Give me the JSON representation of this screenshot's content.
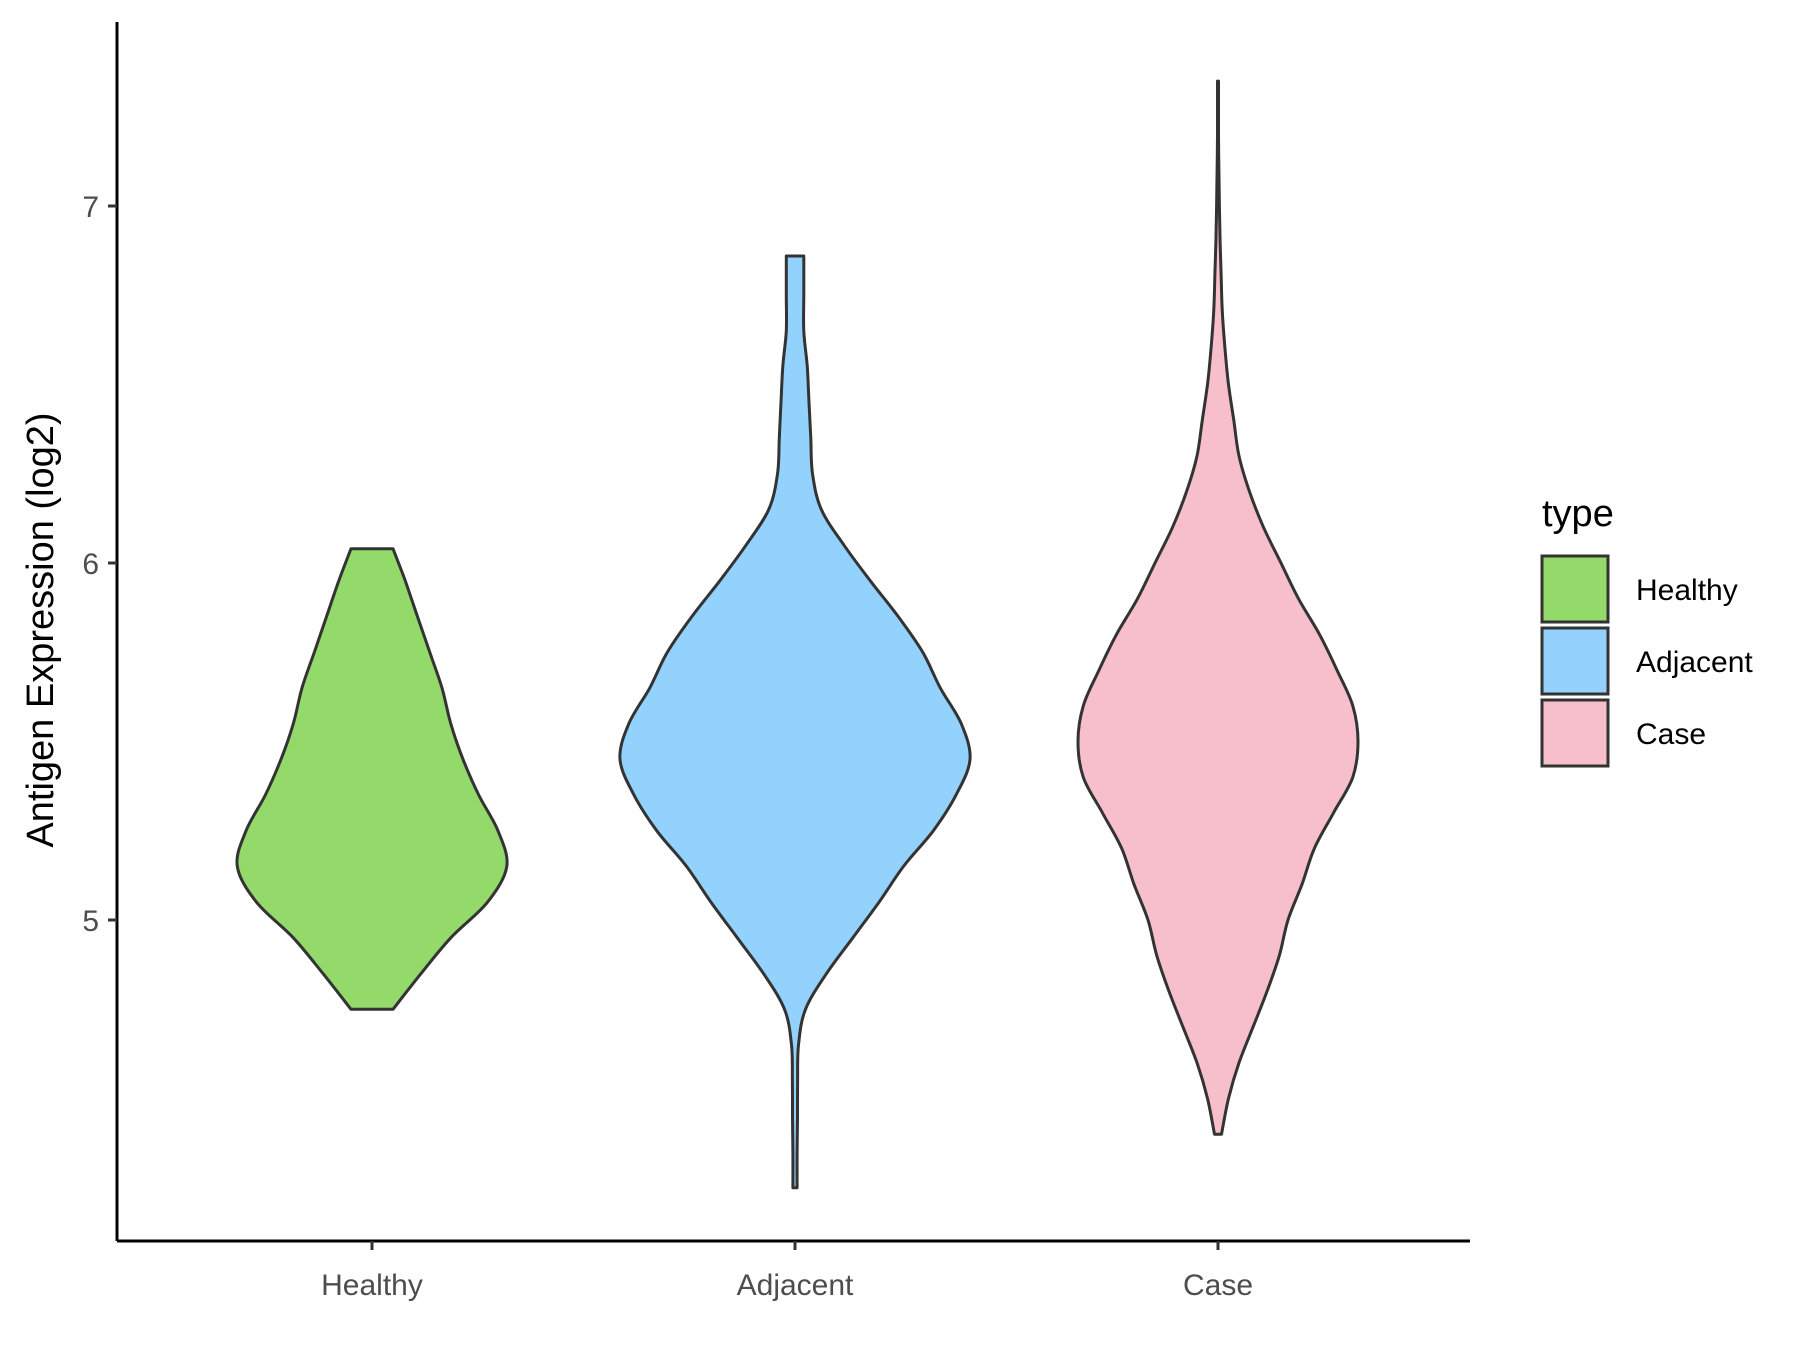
{
  "chart_data": {
    "type": "violin",
    "title": "",
    "xlabel": "",
    "ylabel": "Antigen Expression (log2)",
    "categories": [
      "Healthy",
      "Adjacent",
      "Case"
    ],
    "yticks": [
      "5",
      "6",
      "7"
    ],
    "ylim": [
      4.1,
      7.5
    ],
    "grid": false,
    "legend": {
      "title": "type",
      "placement": "right",
      "entries": [
        "Healthy",
        "Adjacent",
        "Case"
      ]
    },
    "colors": {
      "Healthy": "#93DA6B",
      "Adjacent": "#93D2FC",
      "Case": "#F7BFCB",
      "outline": "#333333"
    },
    "series": [
      {
        "category": "Healthy",
        "min": 4.75,
        "max": 6.04,
        "density": [
          [
            4.75,
            0.12
          ],
          [
            4.85,
            0.28
          ],
          [
            4.95,
            0.45
          ],
          [
            5.05,
            0.66
          ],
          [
            5.15,
            0.77
          ],
          [
            5.25,
            0.72
          ],
          [
            5.35,
            0.61
          ],
          [
            5.45,
            0.52
          ],
          [
            5.55,
            0.45
          ],
          [
            5.65,
            0.4
          ],
          [
            5.75,
            0.33
          ],
          [
            5.85,
            0.26
          ],
          [
            5.95,
            0.19
          ],
          [
            6.04,
            0.12
          ]
        ]
      },
      {
        "category": "Adjacent",
        "min": 4.25,
        "max": 6.86,
        "density": [
          [
            4.25,
            0.012
          ],
          [
            4.35,
            0.012
          ],
          [
            4.45,
            0.014
          ],
          [
            4.55,
            0.015
          ],
          [
            4.65,
            0.02
          ],
          [
            4.75,
            0.06
          ],
          [
            4.85,
            0.18
          ],
          [
            4.95,
            0.33
          ],
          [
            5.05,
            0.48
          ],
          [
            5.15,
            0.62
          ],
          [
            5.25,
            0.79
          ],
          [
            5.35,
            0.92
          ],
          [
            5.45,
            1.0
          ],
          [
            5.55,
            0.95
          ],
          [
            5.65,
            0.83
          ],
          [
            5.75,
            0.73
          ],
          [
            5.85,
            0.59
          ],
          [
            5.95,
            0.43
          ],
          [
            6.05,
            0.28
          ],
          [
            6.15,
            0.15
          ],
          [
            6.25,
            0.1
          ],
          [
            6.35,
            0.09
          ],
          [
            6.45,
            0.08
          ],
          [
            6.55,
            0.07
          ],
          [
            6.65,
            0.05
          ],
          [
            6.75,
            0.05
          ],
          [
            6.86,
            0.05
          ]
        ]
      },
      {
        "category": "Case",
        "min": 4.4,
        "max": 7.35,
        "density": [
          [
            4.4,
            0.02
          ],
          [
            4.5,
            0.06
          ],
          [
            4.6,
            0.12
          ],
          [
            4.7,
            0.2
          ],
          [
            4.8,
            0.28
          ],
          [
            4.9,
            0.35
          ],
          [
            5.0,
            0.4
          ],
          [
            5.1,
            0.48
          ],
          [
            5.2,
            0.55
          ],
          [
            5.3,
            0.66
          ],
          [
            5.4,
            0.77
          ],
          [
            5.5,
            0.8
          ],
          [
            5.6,
            0.77
          ],
          [
            5.7,
            0.68
          ],
          [
            5.8,
            0.58
          ],
          [
            5.9,
            0.46
          ],
          [
            6.0,
            0.36
          ],
          [
            6.1,
            0.26
          ],
          [
            6.2,
            0.18
          ],
          [
            6.3,
            0.12
          ],
          [
            6.4,
            0.09
          ],
          [
            6.5,
            0.06
          ],
          [
            6.6,
            0.04
          ],
          [
            6.7,
            0.025
          ],
          [
            6.8,
            0.018
          ],
          [
            6.9,
            0.012
          ],
          [
            7.0,
            0.008
          ],
          [
            7.1,
            0.005
          ],
          [
            7.2,
            0.003
          ],
          [
            7.35,
            0.003
          ]
        ]
      }
    ]
  }
}
